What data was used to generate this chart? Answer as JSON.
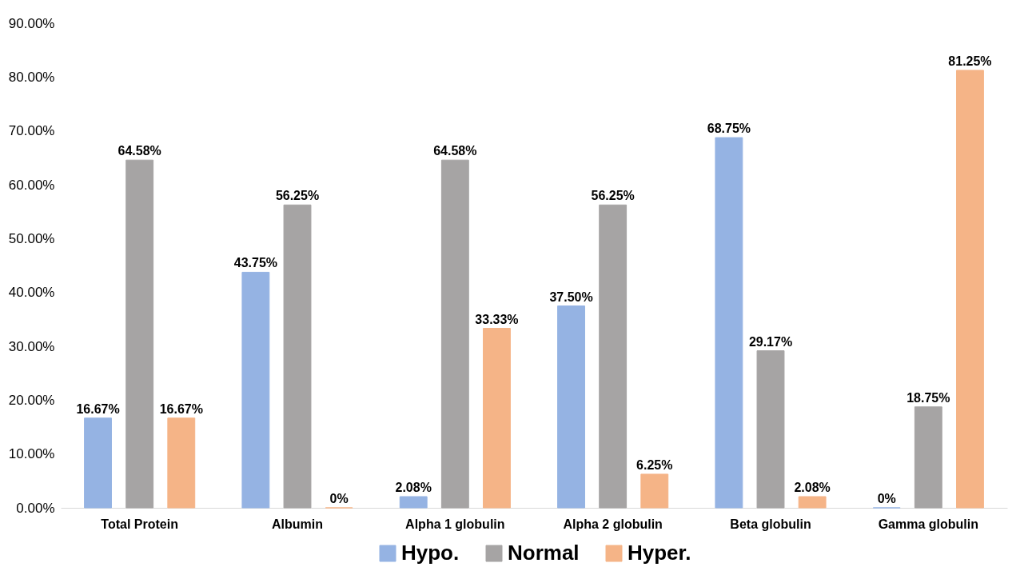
{
  "chart_data": {
    "type": "bar",
    "categories": [
      "Total Protein",
      "Albumin",
      "Alpha 1 globulin",
      "Alpha 2 globulin",
      "Beta globulin",
      "Gamma globulin"
    ],
    "series": [
      {
        "name": "Hypo.",
        "color": "#95b3e3",
        "values": [
          16.67,
          43.75,
          2.08,
          37.5,
          68.75,
          0
        ],
        "value_labels": [
          "16.67%",
          "43.75%",
          "2.08%",
          "37.50%",
          "68.75%",
          "0%"
        ]
      },
      {
        "name": "Normal",
        "color": "#a6a4a4",
        "values": [
          64.58,
          56.25,
          64.58,
          56.25,
          29.17,
          18.75
        ],
        "value_labels": [
          "64.58%",
          "56.25%",
          "64.58%",
          "56.25%",
          "29.17%",
          "18.75%"
        ]
      },
      {
        "name": "Hyper.",
        "color": "#f5b487",
        "values": [
          16.67,
          0,
          33.33,
          6.25,
          2.08,
          81.25
        ],
        "value_labels": [
          "16.67%",
          "0%",
          "33.33%",
          "6.25%",
          "2.08%",
          "81.25%"
        ]
      }
    ],
    "ylim": [
      0,
      90
    ],
    "yticks": [
      {
        "value": 0,
        "label": "0.00%"
      },
      {
        "value": 10,
        "label": "10.00%"
      },
      {
        "value": 20,
        "label": "20.00%"
      },
      {
        "value": 30,
        "label": "30.00%"
      },
      {
        "value": 40,
        "label": "40.00%"
      },
      {
        "value": 50,
        "label": "50.00%"
      },
      {
        "value": 60,
        "label": "60.00%"
      },
      {
        "value": 70,
        "label": "70.00%"
      },
      {
        "value": 80,
        "label": "80.00%"
      },
      {
        "value": 90,
        "label": "90.00%"
      }
    ],
    "legend": "bottom"
  }
}
